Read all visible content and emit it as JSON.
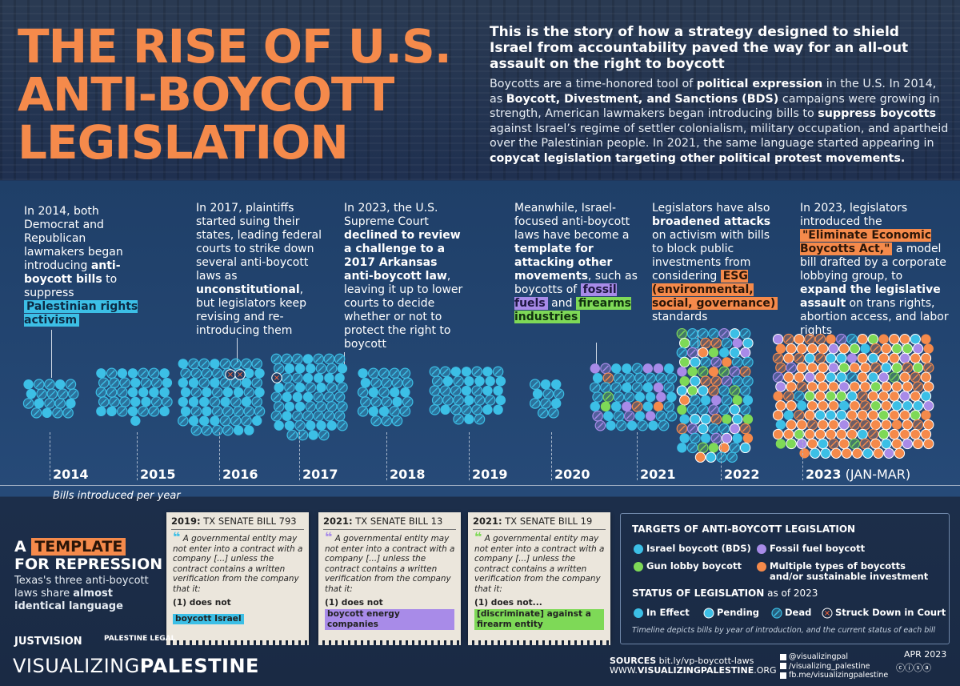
{
  "header": {
    "title_lines": [
      "THE RISE OF U.S.",
      "ANTI-BOYCOTT",
      "LEGISLATION"
    ],
    "lead": "This is the story of how a strategy designed to shield Israel from accountability paved the way for an all-out assault on the right to boycott",
    "intro": {
      "s1": "Boycotts are a time-honored tool of ",
      "b1": "political expression",
      "s2": " in the U.S. In 2014, as ",
      "b2": "Boycott, Divestment, and Sanctions (BDS)",
      "s3": " campaigns were growing in strength, American lawmakers began introducing bills to ",
      "b3": "suppress boycotts",
      "s4": " against Israel’s regime of settler colonialism, military occupation, and apartheid over the Palestinian people. In 2021, the same language started appearing in ",
      "b4": "copycat legislation targeting other political protest movements."
    }
  },
  "timeline": {
    "t2014": {
      "a": "In 2014, both Democrat and Republican lawmakers began introducing ",
      "b": "anti-boycott bills",
      "c": " to suppress ",
      "hl": "Palestinian rights activism"
    },
    "t2017a": {
      "a": "In 2017, plaintiffs started suing their states, leading federal courts to strike down several anti-boycott laws as ",
      "b": "unconstitutional",
      "c": ", but legislators keep revising and re-introducing them"
    },
    "t2023a": {
      "a": "In 2023, the U.S. Supreme Court ",
      "b": "declined to review a challenge to a 2017 Arkansas anti-boycott law",
      "c": ", leaving it up to lower courts to decide whether or not  to protect the right to boycott"
    },
    "t2020": {
      "a": "Meanwhile, Israel-focused anti-boycott laws have become a ",
      "b": "template for attacking other movements",
      "c": ", such as boycotts of ",
      "hl1": "fossil fuels",
      "d": " and ",
      "hl2": "firearms industries"
    },
    "t2021": {
      "a": "Legislators have also ",
      "b": "broadened attacks",
      "c": " on activism with bills to block public investments from considering ",
      "hl": "ESG (environmental, social, governance)",
      "d": " standards"
    },
    "t2023b": {
      "a": "In 2023, legislators introduced the ",
      "hl": "\"Eliminate Economic Boycotts Act,\"",
      "b": " a model bill drafted by a corporate lobbying group, to ",
      "c": "expand the legislative assault",
      "d": " on trans rights, abortion access, and labor rights"
    }
  },
  "years": [
    "2014",
    "2015",
    "2016",
    "2017",
    "2018",
    "2019",
    "2020",
    "2021",
    "2022",
    "2023"
  ],
  "year_suffix": "(JAN-MAR)",
  "axis_caption": "Bills introduced per year",
  "chart_data": {
    "type": "unit-cluster",
    "categories": [
      "2014",
      "2015",
      "2016",
      "2017",
      "2018",
      "2019",
      "2020",
      "2021",
      "2022",
      "2023 (JAN-MAR)"
    ],
    "approx_bills": [
      19,
      36,
      62,
      60,
      28,
      38,
      11,
      55,
      95,
      190
    ]
  },
  "template": {
    "a": "A ",
    "hl": "TEMPLATE",
    "b": "FOR REPRESSION",
    "sub_a": "Texas's three anti-boycott laws share ",
    "sub_b": "almost identical language"
  },
  "cards": [
    {
      "year": "2019:",
      "bill": " TX SENATE BILL 793",
      "quote": "A governmental entity may not enter into a contract with a company [...] unless the contract contains a written verification from the company that it:",
      "cond": "(1)  does not",
      "target": "boycott Israel",
      "color": "#3cbfe6"
    },
    {
      "year": "2021:",
      "bill": " TX SENATE BILL 13",
      "quote": "A governmental entity may not enter into a contract with a company [...] unless the contract contains a written verification from the company that it:",
      "cond": "(1)  does not",
      "target": "boycott energy companies",
      "color": "#a88be8"
    },
    {
      "year": "2021:",
      "bill": " TX SENATE BILL 19",
      "quote": "A governmental entity may not enter into a contract with a company [...] unless the contract contains a written verification from the company that it:",
      "cond": "(1)  does not...",
      "target": "[discriminate] against a firearm entity",
      "color": "#7ed957"
    }
  ],
  "quote_mark": "❝",
  "legend": {
    "targets_title": "TARGETS OF ANTI-BOYCOTT LEGISLATION",
    "israel": "Israel boycott (BDS)",
    "fossil": "Fossil fuel boycott",
    "gun": "Gun lobby boycott",
    "multi": "Multiple types of boycotts and/or sustainable investment",
    "status_title": "STATUS OF LEGISLATION",
    "status_asof": " as of 2023",
    "in_effect": "In Effect",
    "pending": "Pending",
    "dead": "Dead",
    "struck": "Struck Down in Court",
    "note": "Timeline depicts bills by year of introduction, and the current status of each bill",
    "colors": {
      "israel": "#3cbfe6",
      "fossil": "#a88be8",
      "gun": "#7ed957",
      "multi": "#f58a4b"
    }
  },
  "footer": {
    "brand_a": "VISUALIZING",
    "brand_b": "PALESTINE",
    "justvision": "JUSTVISION",
    "palestine_legal": "PALESTINE LEGAL",
    "sources_label": "SOURCES",
    "sources_url": " bit.ly/vp-boycott-laws",
    "site_a": "WWW.",
    "site_b": "VISUALIZINGPALESTINE",
    "site_c": ".ORG",
    "social1": "@visualizingpal",
    "social2": "/visualizing_palestine",
    "social3": "fb.me/visualizingpalestine",
    "date": "APR 2023",
    "license": "ⓒⓘⓢⓐ"
  }
}
